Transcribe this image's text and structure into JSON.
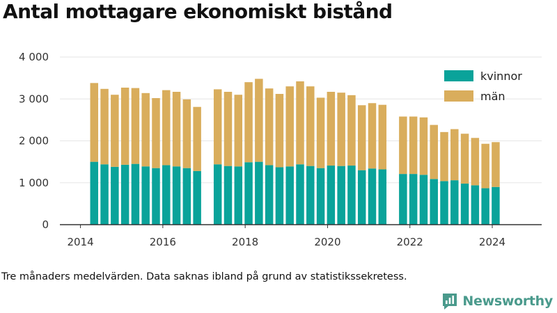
{
  "title": "Antal mottagare ekonomiskt bistånd",
  "caption": "Tre månaders medelvärden. Data saknas ibland på grund av statistikssekretess.",
  "brand": {
    "name": "Newsworthy",
    "icon": "newsworthy-logo-icon",
    "color": "#4a9a8c"
  },
  "colors": {
    "kvinnor": "#0aa39a",
    "man": "#d9ad5c",
    "grid": "#e6e6e6",
    "axis": "#333333"
  },
  "chart_data": {
    "type": "bar",
    "stacked": true,
    "title": "Antal mottagare ekonomiskt bistånd",
    "xlabel": "",
    "ylabel": "",
    "ylim": [
      0,
      4000
    ],
    "y_ticks": [
      0,
      1000,
      2000,
      3000,
      4000
    ],
    "y_tick_labels": [
      "0",
      "1 000",
      "2 000",
      "3 000",
      "4 000"
    ],
    "x_ticks": [
      2014,
      2016,
      2018,
      2020,
      2022,
      2024
    ],
    "x_tick_labels": [
      "2014",
      "2016",
      "2018",
      "2020",
      "2022",
      "2024"
    ],
    "grid": true,
    "legend_position": "top-right",
    "x": [
      2014.333,
      2014.583,
      2014.833,
      2015.083,
      2015.333,
      2015.583,
      2015.833,
      2016.083,
      2016.333,
      2016.583,
      2016.833,
      2017.333,
      2017.583,
      2017.833,
      2018.083,
      2018.333,
      2018.583,
      2018.833,
      2019.083,
      2019.333,
      2019.583,
      2019.833,
      2020.083,
      2020.333,
      2020.583,
      2020.833,
      2021.083,
      2021.333,
      2021.833,
      2022.083,
      2022.333,
      2022.583,
      2022.833,
      2023.083,
      2023.333,
      2023.583,
      2023.833,
      2024.083
    ],
    "series": [
      {
        "name": "kvinnor",
        "color": "#0aa39a",
        "values": [
          1500,
          1440,
          1380,
          1430,
          1450,
          1390,
          1350,
          1420,
          1390,
          1350,
          1280,
          1440,
          1400,
          1390,
          1490,
          1500,
          1420,
          1370,
          1390,
          1440,
          1400,
          1350,
          1410,
          1400,
          1410,
          1300,
          1340,
          1320,
          1210,
          1210,
          1190,
          1090,
          1040,
          1060,
          980,
          940,
          870,
          900
        ]
      },
      {
        "name": "män",
        "color": "#d9ad5c",
        "values": [
          1880,
          1800,
          1720,
          1840,
          1810,
          1750,
          1670,
          1790,
          1780,
          1640,
          1530,
          1790,
          1770,
          1710,
          1910,
          1980,
          1830,
          1750,
          1910,
          1980,
          1900,
          1680,
          1760,
          1750,
          1680,
          1550,
          1560,
          1540,
          1370,
          1370,
          1370,
          1290,
          1170,
          1220,
          1190,
          1130,
          1060,
          1070
        ]
      }
    ]
  }
}
